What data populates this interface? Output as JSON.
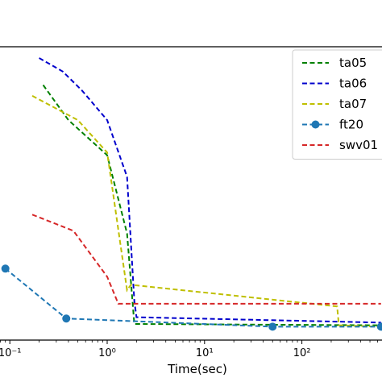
{
  "chart_data": {
    "type": "line",
    "xlabel": "Time(sec)",
    "ylabel": "",
    "x_scale": "log",
    "xlim": [
      0.08,
      650
    ],
    "ylim": [
      0,
      100
    ],
    "x_ticks": [
      {
        "value": 0.1,
        "label": "10⁻¹"
      },
      {
        "value": 1,
        "label": "10⁰"
      },
      {
        "value": 10,
        "label": "10¹"
      },
      {
        "value": 100,
        "label": "10²"
      }
    ],
    "legend_position": "top-right",
    "grid": false,
    "series": [
      {
        "name": "ta05",
        "color": "#008000",
        "style": "dashed",
        "marker": false,
        "x": [
          0.22,
          0.4,
          1.0,
          1.6,
          1.9,
          650
        ],
        "y": [
          90,
          77,
          64,
          35,
          1.5,
          1.0
        ]
      },
      {
        "name": "ta06",
        "color": "#0000cc",
        "style": "dashed",
        "marker": false,
        "x": [
          0.2,
          0.35,
          0.55,
          1.0,
          1.6,
          1.9,
          2.0,
          650
        ],
        "y": [
          100,
          95,
          88,
          77,
          56,
          10,
          4,
          2
        ]
      },
      {
        "name": "ta07",
        "color": "#bfbf00",
        "style": "dashed",
        "marker": false,
        "x": [
          0.17,
          0.5,
          1.0,
          1.6,
          1.75,
          230,
          240,
          650
        ],
        "y": [
          86,
          77,
          65,
          14,
          16,
          8,
          1,
          0.5
        ]
      },
      {
        "name": "ft20",
        "color": "#1f77b4",
        "style": "dashed",
        "marker": true,
        "x": [
          0.09,
          0.38,
          50,
          650
        ],
        "y": [
          22,
          3.5,
          0.5,
          0.5
        ]
      },
      {
        "name": "swv01",
        "color": "#d62728",
        "style": "dashed",
        "marker": false,
        "x": [
          0.17,
          0.45,
          1.0,
          1.3,
          650
        ],
        "y": [
          42,
          36,
          19,
          9,
          9
        ]
      }
    ]
  }
}
